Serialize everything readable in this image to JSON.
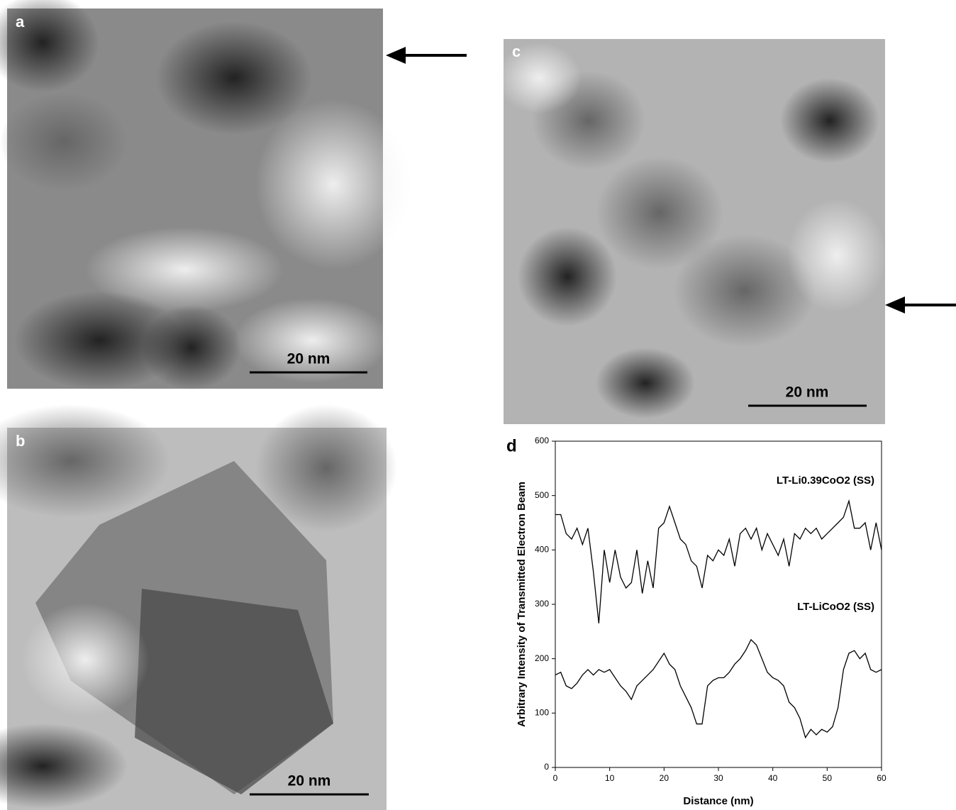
{
  "panels": [
    {
      "label": "a",
      "scale_bar": "20 nm"
    },
    {
      "label": "b",
      "scale_bar": "20 nm"
    },
    {
      "label": "c",
      "scale_bar": "20 nm"
    }
  ],
  "chart_data": {
    "type": "line",
    "panel_label": "d",
    "xlabel": "Distance (nm)",
    "ylabel": "Arbitrary Intensity of Transmitted Electron Beam",
    "x": [
      0,
      1,
      2,
      3,
      4,
      5,
      6,
      7,
      8,
      9,
      10,
      11,
      12,
      13,
      14,
      15,
      16,
      17,
      18,
      19,
      20,
      21,
      22,
      23,
      24,
      25,
      26,
      27,
      28,
      29,
      30,
      31,
      32,
      33,
      34,
      35,
      36,
      37,
      38,
      39,
      40,
      41,
      42,
      43,
      44,
      45,
      46,
      47,
      48,
      49,
      50,
      51,
      52,
      53,
      54,
      55,
      56,
      57,
      58,
      59,
      60
    ],
    "series": [
      {
        "name": "LT-Li0.39CoO2 (SS)",
        "color": "#000000",
        "values": [
          465,
          465,
          430,
          420,
          440,
          410,
          440,
          360,
          265,
          400,
          340,
          400,
          350,
          330,
          340,
          400,
          320,
          380,
          330,
          440,
          450,
          480,
          450,
          420,
          410,
          380,
          370,
          330,
          390,
          380,
          400,
          390,
          420,
          370,
          430,
          440,
          420,
          440,
          400,
          430,
          410,
          390,
          420,
          370,
          430,
          420,
          440,
          430,
          440,
          420,
          430,
          440,
          450,
          460,
          490,
          440,
          440,
          450,
          400,
          450,
          400
        ]
      },
      {
        "name": "LT-LiCoO2 (SS)",
        "color": "#000000",
        "values": [
          170,
          175,
          150,
          145,
          155,
          170,
          180,
          170,
          180,
          175,
          180,
          165,
          150,
          140,
          125,
          150,
          160,
          170,
          180,
          195,
          210,
          190,
          180,
          150,
          130,
          110,
          80,
          80,
          150,
          160,
          165,
          165,
          175,
          190,
          200,
          215,
          235,
          225,
          200,
          175,
          165,
          160,
          150,
          120,
          110,
          90,
          55,
          70,
          60,
          70,
          65,
          75,
          110,
          180,
          210,
          215,
          200,
          210,
          180,
          175,
          180
        ]
      }
    ],
    "xlim": [
      0,
      60
    ],
    "ylim": [
      0,
      600
    ],
    "xticks": [
      0,
      10,
      20,
      30,
      40,
      50,
      60
    ],
    "yticks": [
      0,
      100,
      200,
      300,
      400,
      500,
      600
    ]
  }
}
